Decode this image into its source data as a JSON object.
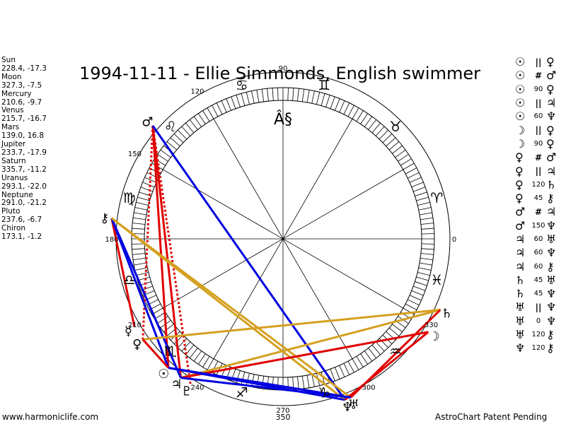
{
  "title": "1994-11-11 - Ellie Simmonds, English swimmer",
  "footer": {
    "website": "www.harmoniclife.com",
    "notice": "AstroChart Patent Pending"
  },
  "positions": [
    {
      "name": "Sun",
      "coords": "228.4, -17.3"
    },
    {
      "name": "Moon",
      "coords": "327.3, -7.5"
    },
    {
      "name": "Mercury",
      "coords": "210.6, -9.7"
    },
    {
      "name": "Venus",
      "coords": "215.7, -16.7"
    },
    {
      "name": "Mars",
      "coords": "139.0, 16.8"
    },
    {
      "name": "Jupiter",
      "coords": "233.7, -17.9"
    },
    {
      "name": "Saturn",
      "coords": "335.7, -11.2"
    },
    {
      "name": "Uranus",
      "coords": "293.1, -22.0"
    },
    {
      "name": "Neptune",
      "coords": "291.0, -21.2"
    },
    {
      "name": "Pluto",
      "coords": "237.6, -6.7"
    },
    {
      "name": "Chiron",
      "coords": "173.1, -1.2"
    }
  ],
  "aspects": [
    {
      "p1": "☉",
      "type": "||",
      "p2": "♀"
    },
    {
      "p1": "☉",
      "type": "#",
      "p2": "♂"
    },
    {
      "p1": "☉",
      "type": "90",
      "p2": "♀"
    },
    {
      "p1": "☉",
      "type": "||",
      "p2": "♃"
    },
    {
      "p1": "☉",
      "type": "60",
      "p2": "♆"
    },
    {
      "p1": "☽",
      "type": "||",
      "p2": "♀"
    },
    {
      "p1": "☽",
      "type": "90",
      "p2": "♀"
    },
    {
      "p1": "♀",
      "type": "#",
      "p2": "♂"
    },
    {
      "p1": "♀",
      "type": "||",
      "p2": "♃"
    },
    {
      "p1": "♀",
      "type": "120",
      "p2": "♄"
    },
    {
      "p1": "♀",
      "type": "45",
      "p2": "⚷"
    },
    {
      "p1": "♂",
      "type": "#",
      "p2": "♃"
    },
    {
      "p1": "♂",
      "type": "150",
      "p2": "♆"
    },
    {
      "p1": "♃",
      "type": "60",
      "p2": "♅"
    },
    {
      "p1": "♃",
      "type": "60",
      "p2": "♆"
    },
    {
      "p1": "♃",
      "type": "60",
      "p2": "⚷"
    },
    {
      "p1": "♄",
      "type": "45",
      "p2": "♅"
    },
    {
      "p1": "♄",
      "type": "45",
      "p2": "♆"
    },
    {
      "p1": "♅",
      "type": "||",
      "p2": "♆"
    },
    {
      "p1": "♅",
      "type": "0",
      "p2": "♆"
    },
    {
      "p1": "♅",
      "type": "120",
      "p2": "⚷"
    },
    {
      "p1": "♆",
      "type": "120",
      "p2": "⚷"
    }
  ],
  "wheel": {
    "degree_labels": [
      {
        "text": "90",
        "deg": 90
      },
      {
        "text": "120",
        "deg": 120
      },
      {
        "text": "150",
        "deg": 150
      },
      {
        "text": "180",
        "deg": 180
      },
      {
        "text": "210",
        "deg": 210
      },
      {
        "text": "240",
        "deg": 240
      },
      {
        "text": "270",
        "deg": 270
      },
      {
        "text": "300",
        "deg": 300
      },
      {
        "text": "330",
        "deg": 330
      },
      {
        "text": "0",
        "deg": 0
      }
    ],
    "extra_bottom_label": "350",
    "zodiac_signs": [
      {
        "glyph": "♈",
        "deg": 15
      },
      {
        "glyph": "♉",
        "deg": 45
      },
      {
        "glyph": "♊",
        "deg": 75
      },
      {
        "glyph": "♋",
        "deg": 105
      },
      {
        "glyph": "♌",
        "deg": 135
      },
      {
        "glyph": "♍",
        "deg": 165
      },
      {
        "glyph": "♎",
        "deg": 195
      },
      {
        "glyph": "♏",
        "deg": 225
      },
      {
        "glyph": "♐",
        "deg": 255
      },
      {
        "glyph": "♑",
        "deg": 285
      },
      {
        "glyph": "♒",
        "deg": 315
      },
      {
        "glyph": "♓",
        "deg": 345
      }
    ],
    "planets": [
      {
        "glyph": "☉",
        "deg": 228.4,
        "label": "sun"
      },
      {
        "glyph": "☽",
        "deg": 327.3,
        "label": "moon"
      },
      {
        "glyph": "☿",
        "deg": 210.6,
        "label": "mercury"
      },
      {
        "glyph": "♀",
        "deg": 215.7,
        "label": "venus"
      },
      {
        "glyph": "♂",
        "deg": 139.0,
        "label": "mars"
      },
      {
        "glyph": "♃",
        "deg": 233.7,
        "label": "jupiter"
      },
      {
        "glyph": "♄",
        "deg": 335.7,
        "label": "saturn"
      },
      {
        "glyph": "♅",
        "deg": 293.1,
        "label": "uranus"
      },
      {
        "glyph": "♆",
        "deg": 291.0,
        "label": "neptune"
      },
      {
        "glyph": "♇",
        "deg": 237.6,
        "label": "pluto"
      },
      {
        "glyph": "⚷",
        "deg": 173.1,
        "label": "chiron"
      }
    ],
    "center_mark": "Â§",
    "aspect_lines": [
      {
        "from": 139.0,
        "to": 228.4,
        "color": "#e00000",
        "style": "solid"
      },
      {
        "from": 139.0,
        "to": 233.7,
        "color": "#e00000",
        "style": "solid"
      },
      {
        "from": 139.0,
        "to": 215.7,
        "color": "#e00000",
        "style": "dotted"
      },
      {
        "from": 139.0,
        "to": 237.6,
        "color": "#e00000",
        "style": "dotted"
      },
      {
        "from": 139.0,
        "to": 291.0,
        "color": "#0000e0",
        "style": "solid"
      },
      {
        "from": 173.1,
        "to": 210.6,
        "color": "#e00000",
        "style": "solid"
      },
      {
        "from": 173.1,
        "to": 228.4,
        "color": "#0000e0",
        "style": "solid"
      },
      {
        "from": 173.1,
        "to": 233.7,
        "color": "#0000e0",
        "style": "solid"
      },
      {
        "from": 173.1,
        "to": 293.1,
        "color": "#d4a020",
        "style": "solid"
      },
      {
        "from": 173.1,
        "to": 291.0,
        "color": "#d4a020",
        "style": "solid"
      },
      {
        "from": 215.7,
        "to": 335.7,
        "color": "#d4a020",
        "style": "solid"
      },
      {
        "from": 233.7,
        "to": 335.7,
        "color": "#d4a020",
        "style": "solid"
      },
      {
        "from": 228.4,
        "to": 215.7,
        "color": "#e00000",
        "style": "solid"
      },
      {
        "from": 233.7,
        "to": 327.3,
        "color": "#e00000",
        "style": "solid"
      },
      {
        "from": 293.1,
        "to": 335.7,
        "color": "#e00000",
        "style": "solid"
      },
      {
        "from": 291.0,
        "to": 327.3,
        "color": "#e00000",
        "style": "solid"
      },
      {
        "from": 228.4,
        "to": 291.0,
        "color": "#0000e0",
        "style": "solid"
      },
      {
        "from": 233.7,
        "to": 293.1,
        "color": "#0000e0",
        "style": "solid"
      },
      {
        "from": 228.4,
        "to": 293.1,
        "color": "#0000e0",
        "style": "solid"
      }
    ]
  }
}
